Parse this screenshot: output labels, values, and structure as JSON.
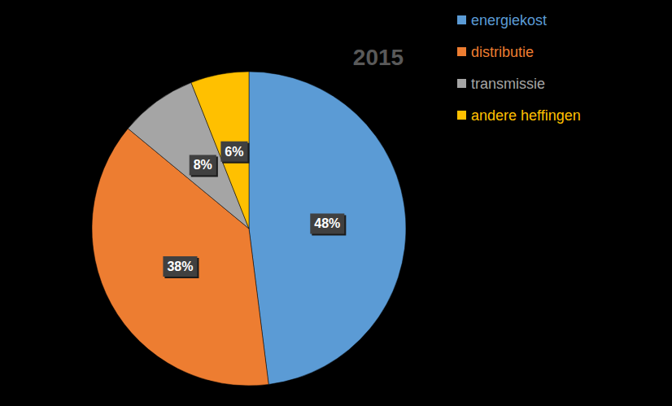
{
  "chart_data": {
    "type": "pie",
    "title": "2015",
    "categories": [
      "energiekost",
      "distributie",
      "transmissie",
      "andere heffingen"
    ],
    "values": [
      48,
      38,
      8,
      6
    ],
    "value_labels": [
      "48%",
      "38%",
      "8%",
      "6%"
    ],
    "colors": [
      "#5b9bd5",
      "#ed7d31",
      "#a5a5a5",
      "#ffc000"
    ],
    "data_labels": true,
    "legend": "top-right"
  }
}
